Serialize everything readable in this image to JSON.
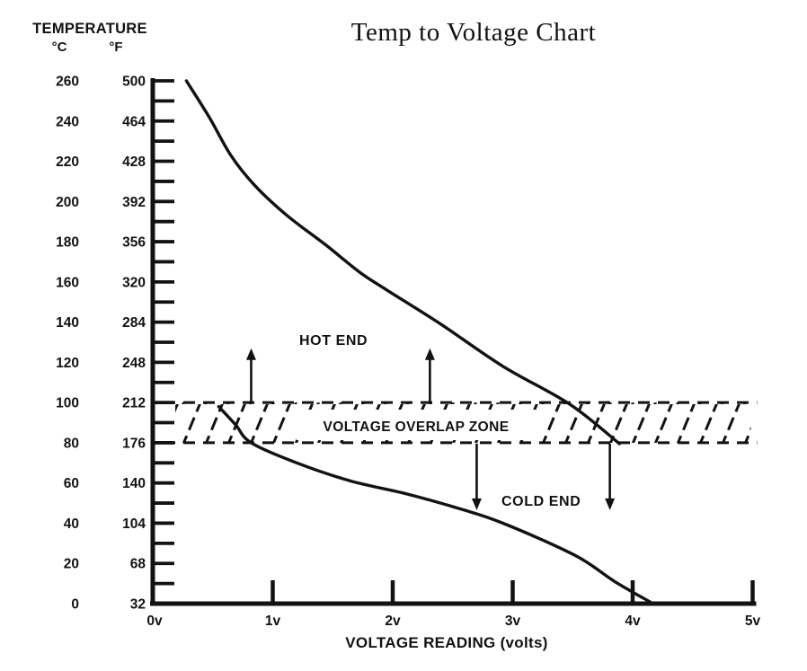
{
  "title": "Temp to Voltage Chart",
  "colors": {
    "ink": "#121212",
    "background": "#ffffff"
  },
  "chart_data": {
    "type": "line",
    "title": "Temp to Voltage Chart",
    "xlabel": "VOLTAGE READING (volts)",
    "ylabel_header": "TEMPERATURE",
    "ylabel_units": {
      "c": "°C",
      "f": "°F"
    },
    "x_range_v": [
      0,
      5
    ],
    "y_range_c": [
      0,
      260
    ],
    "y_minor_step_c": 10,
    "grid": "off",
    "x_ticks": [
      {
        "v": 0,
        "label": "0v"
      },
      {
        "v": 1,
        "label": "1v"
      },
      {
        "v": 2,
        "label": "2v"
      },
      {
        "v": 3,
        "label": "3v"
      },
      {
        "v": 4,
        "label": "4v"
      },
      {
        "v": 5,
        "label": "5v"
      }
    ],
    "y_tick_pairs": [
      {
        "c": 260,
        "f": 500
      },
      {
        "c": 240,
        "f": 464
      },
      {
        "c": 220,
        "f": 428
      },
      {
        "c": 200,
        "f": 392
      },
      {
        "c": 180,
        "f": 356
      },
      {
        "c": 160,
        "f": 320
      },
      {
        "c": 140,
        "f": 284
      },
      {
        "c": 120,
        "f": 248
      },
      {
        "c": 100,
        "f": 212
      },
      {
        "c": 80,
        "f": 176
      },
      {
        "c": 60,
        "f": 140
      },
      {
        "c": 40,
        "f": 104
      },
      {
        "c": 20,
        "f": 68
      },
      {
        "c": 0,
        "f": 32
      }
    ],
    "series": [
      {
        "name": "hot_end",
        "label": "HOT END",
        "points": [
          {
            "v": 0.28,
            "c": 260
          },
          {
            "v": 0.47,
            "c": 242
          },
          {
            "v": 0.65,
            "c": 223
          },
          {
            "v": 0.85,
            "c": 208
          },
          {
            "v": 1.12,
            "c": 193
          },
          {
            "v": 1.45,
            "c": 178
          },
          {
            "v": 1.72,
            "c": 165
          },
          {
            "v": 1.95,
            "c": 156
          },
          {
            "v": 2.4,
            "c": 139
          },
          {
            "v": 2.92,
            "c": 118
          },
          {
            "v": 3.48,
            "c": 99
          },
          {
            "v": 3.89,
            "c": 79.5
          }
        ]
      },
      {
        "name": "cold_end",
        "label": "COLD END",
        "points": [
          {
            "v": 0.55,
            "c": 98
          },
          {
            "v": 0.69,
            "c": 89
          },
          {
            "v": 0.82,
            "c": 80
          },
          {
            "v": 1.2,
            "c": 70
          },
          {
            "v": 1.65,
            "c": 61
          },
          {
            "v": 2.12,
            "c": 54.5
          },
          {
            "v": 2.57,
            "c": 47
          },
          {
            "v": 2.92,
            "c": 40
          },
          {
            "v": 3.52,
            "c": 24
          },
          {
            "v": 3.85,
            "c": 11
          },
          {
            "v": 4.17,
            "c": 0
          }
        ]
      }
    ],
    "overlap_zone": {
      "label": "VOLTAGE OVERLAP ZONE",
      "c_min": 80,
      "c_max": 100
    },
    "arrows": {
      "hot_up_v": [
        0.82,
        2.31
      ],
      "hot_tip_c": 127,
      "cold_down_v": [
        2.7,
        3.81
      ],
      "cold_tip_c": 46.5
    }
  }
}
